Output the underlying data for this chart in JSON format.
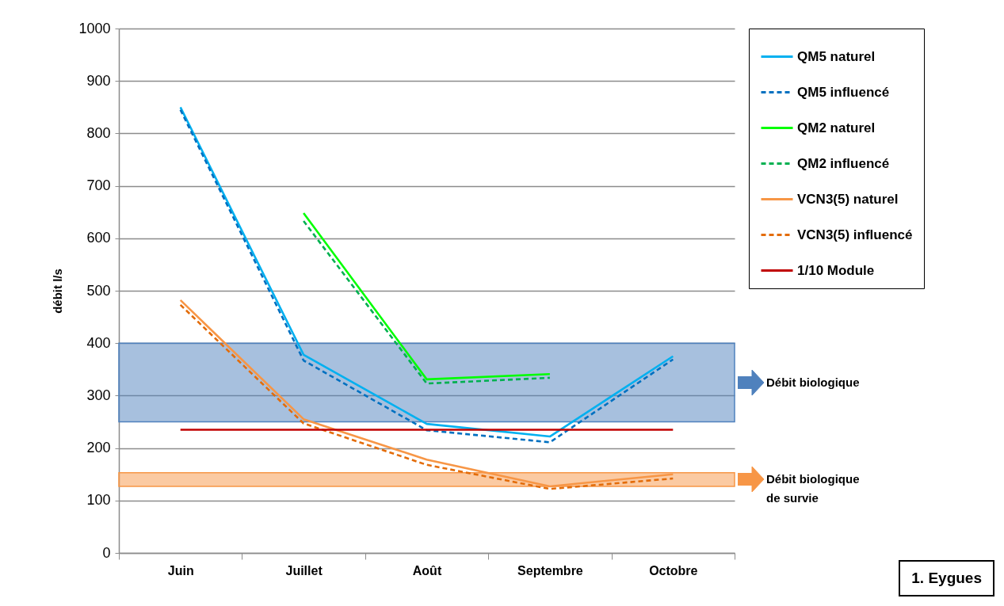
{
  "chart_data": {
    "type": "line",
    "ylabel": "débit l/s",
    "categories": [
      "Juin",
      "Juillet",
      "Août",
      "Septembre",
      "Octobre"
    ],
    "ylim": [
      0,
      1000
    ],
    "yticks": [
      0,
      100,
      200,
      300,
      400,
      500,
      600,
      700,
      800,
      900,
      1000
    ],
    "grid": "y",
    "legend": "top right",
    "marker": "none",
    "series": [
      {
        "name": "QM5 naturel",
        "color": "#00b0f0",
        "line_style": "solid",
        "values": [
          850,
          378,
          246,
          222,
          375
        ]
      },
      {
        "name": "QM5 influencé",
        "color": "#0070c0",
        "line_style": "dashed",
        "values": [
          845,
          367,
          234,
          211,
          369
        ]
      },
      {
        "name": "QM2 naturel",
        "color": "#00ff00",
        "line_style": "solid",
        "values": [
          null,
          648,
          331,
          341,
          null
        ]
      },
      {
        "name": "QM2 influencé",
        "color": "#00b050",
        "line_style": "dashed",
        "values": [
          null,
          633,
          323,
          334,
          null
        ]
      },
      {
        "name": "VCN3(5) naturel",
        "color": "#f79646",
        "line_style": "solid",
        "values": [
          482,
          255,
          178,
          127,
          150
        ]
      },
      {
        "name": "VCN3(5) influencé",
        "color": "#e36c09",
        "line_style": "dashed",
        "values": [
          473,
          247,
          168,
          122,
          142
        ]
      },
      {
        "name": "1/10  Module",
        "color": "#c00000",
        "line_style": "solid",
        "values": [
          235,
          235,
          235,
          235,
          235
        ]
      }
    ],
    "bands": [
      {
        "axis": "y",
        "from": 250,
        "to": 400,
        "label": "Débit biologique",
        "color": "#4f81bd"
      },
      {
        "axis": "y",
        "from": 127,
        "to": 153,
        "label": "Débit biologique de survie",
        "color": "#f79646"
      }
    ],
    "annotations": [
      "1. Eygues"
    ]
  }
}
